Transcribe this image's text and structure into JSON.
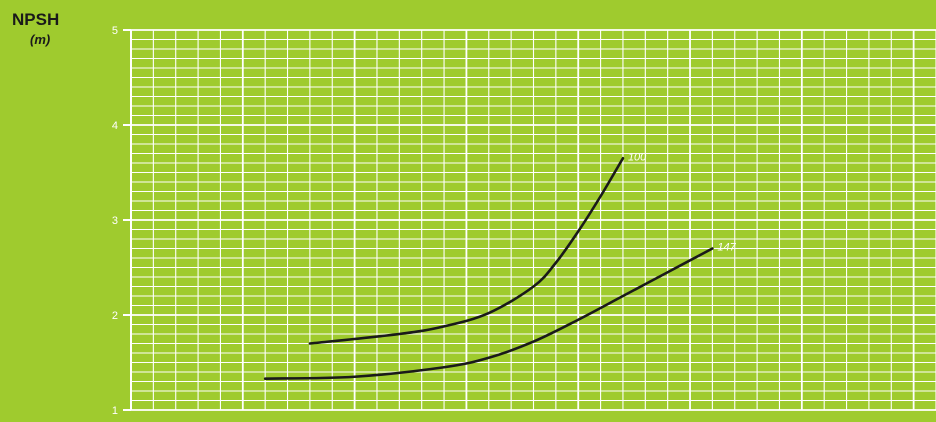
{
  "chart_data": {
    "type": "line",
    "ylabel": "NPSH",
    "yunit": "(m)",
    "ylim": [
      1,
      5
    ],
    "yticks": [
      1,
      2,
      3,
      4,
      5
    ],
    "xlim": [
      0,
      36
    ],
    "grid": true,
    "series": [
      {
        "name": "100",
        "x": [
          8,
          12,
          14,
          16,
          18,
          19,
          20,
          21,
          22
        ],
        "y": [
          1.7,
          1.8,
          1.88,
          2.02,
          2.3,
          2.55,
          2.88,
          3.25,
          3.65
        ]
      },
      {
        "name": "147",
        "x": [
          6,
          10,
          14,
          16,
          18,
          20,
          22,
          24,
          26
        ],
        "y": [
          1.33,
          1.35,
          1.45,
          1.55,
          1.72,
          1.95,
          2.2,
          2.45,
          2.7
        ]
      }
    ],
    "colors": {
      "background": "#9fcb2e",
      "grid": "#ffffff",
      "line": "#1a1a1a"
    }
  }
}
